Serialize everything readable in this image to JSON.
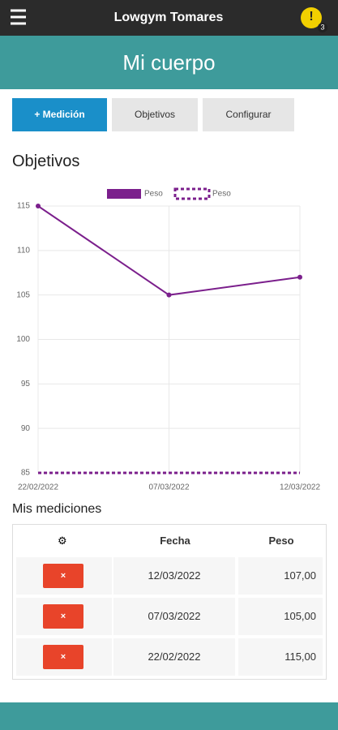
{
  "header": {
    "title": "Lowgym Tomares",
    "badge": "3"
  },
  "page_title": "Mi cuerpo",
  "tabs": [
    "+ Medición",
    "Objetivos",
    "Configurar"
  ],
  "section_title": "Objetivos",
  "chart_data": {
    "type": "line",
    "x": [
      "22/02/2022",
      "07/03/2022",
      "12/03/2022"
    ],
    "series": [
      {
        "name": "Peso",
        "color": "#7b1f8c",
        "style": "solid",
        "values": [
          115,
          105,
          107
        ]
      },
      {
        "name": "Peso",
        "color": "#7b1f8c",
        "style": "dashed",
        "values": [
          85,
          85,
          85
        ]
      }
    ],
    "ylim": [
      85,
      115
    ],
    "yticks": [
      85,
      90,
      95,
      100,
      105,
      110,
      115
    ],
    "grid": true,
    "legend": "top"
  },
  "table": {
    "title": "Mis mediciones",
    "columns": [
      "Fecha",
      "Peso"
    ],
    "rows": [
      [
        "12/03/2022",
        "107,00"
      ],
      [
        "07/03/2022",
        "105,00"
      ],
      [
        "22/02/2022",
        "115,00"
      ]
    ]
  }
}
